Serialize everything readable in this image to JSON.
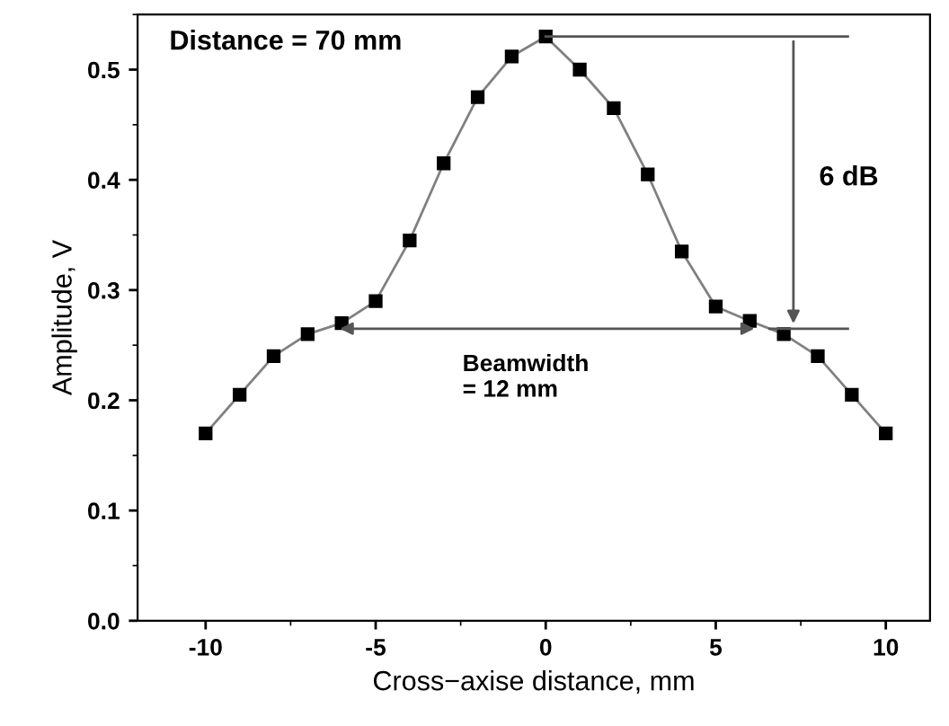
{
  "chart_data": {
    "type": "line",
    "xlabel": "Cross−axise distance, mm",
    "ylabel": "Amplitude, V",
    "x": [
      -10,
      -9,
      -8,
      -7,
      -6,
      -5,
      -4,
      -3,
      -2,
      -1,
      0,
      1,
      2,
      3,
      4,
      5,
      6,
      7,
      8,
      9,
      10
    ],
    "series": [
      {
        "color": "#000000",
        "values": [
          0.17,
          0.205,
          0.24,
          0.26,
          0.27,
          0.29,
          0.345,
          0.415,
          0.475,
          0.512,
          0.53,
          0.5,
          0.465,
          0.405,
          0.335,
          0.285,
          0.272,
          0.26,
          0.24,
          0.205,
          0.17
        ]
      }
    ],
    "xlim": [
      -12,
      11.3
    ],
    "ylim": [
      0,
      0.55
    ],
    "xticks": [
      -10,
      -5,
      0,
      5,
      10
    ],
    "yticks": [
      {
        "value": 0,
        "label": "0.0"
      },
      {
        "value": 0.1,
        "label": "0.1"
      },
      {
        "value": 0.2,
        "label": "0.2"
      },
      {
        "value": 0.3,
        "label": "0.3"
      },
      {
        "value": 0.4,
        "label": "0.4"
      },
      {
        "value": 0.5,
        "label": "0.5"
      }
    ],
    "marker": "square",
    "line_style": "solid",
    "grid": false,
    "legend": false,
    "annotations": [
      "Distance = 70 mm",
      "6 dB",
      "Beamwidth\n= 12 mm"
    ]
  }
}
